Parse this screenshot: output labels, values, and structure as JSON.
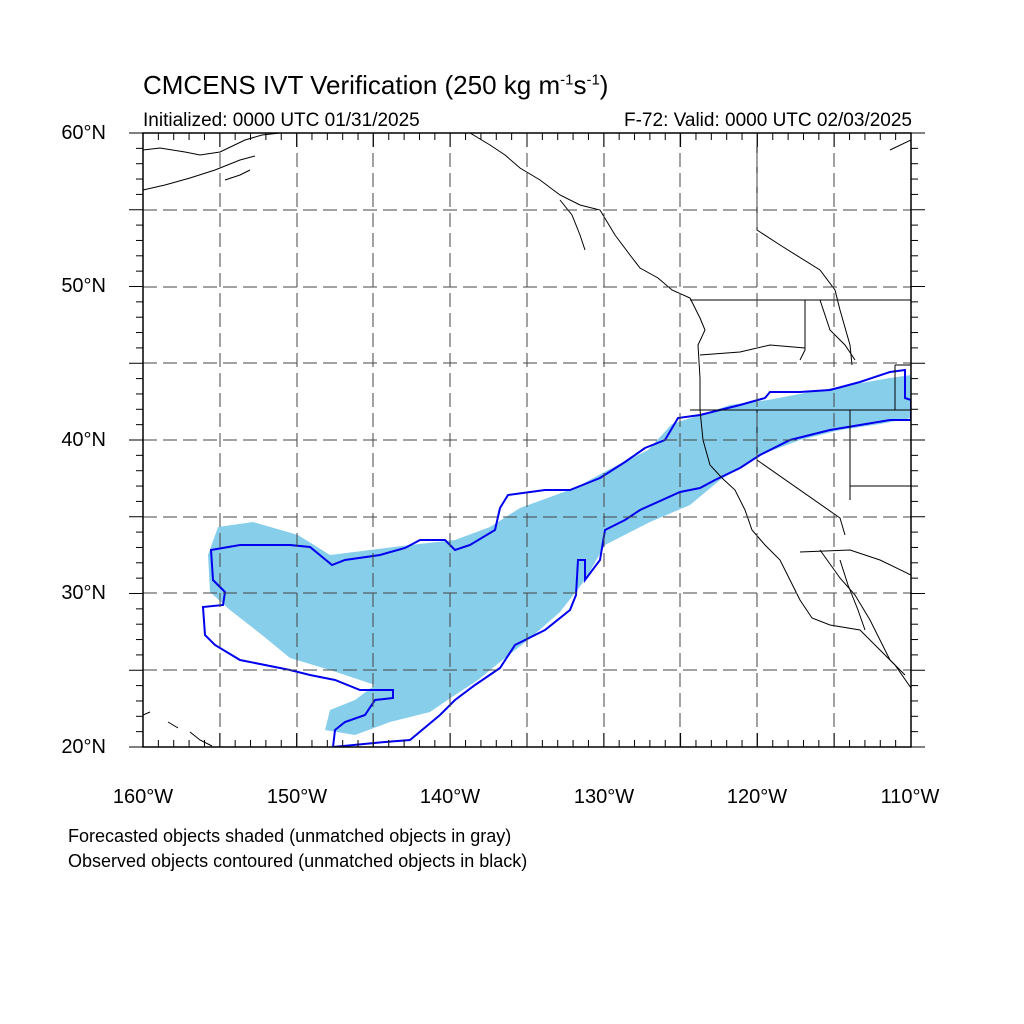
{
  "title": {
    "main": "CMCENS IVT Verification (250 kg m",
    "exp1": "-1",
    "mid": "s",
    "exp2": "-1",
    "end": ")"
  },
  "subtitle_left": "Initialized: 0000 UTC 01/31/2025",
  "subtitle_right": "F-72: Valid: 0000 UTC 02/03/2025",
  "lat_labels": [
    "60°N",
    "50°N",
    "40°N",
    "30°N",
    "20°N"
  ],
  "lon_labels": [
    "160°W",
    "150°W",
    "140°W",
    "130°W",
    "120°W",
    "110°W"
  ],
  "notes": [
    "Forecasted objects shaded (unmatched objects in gray)",
    "Observed objects contoured (unmatched objects in black)"
  ],
  "map": {
    "extent": {
      "lon": [
        -160,
        -110
      ],
      "lat": [
        20,
        60
      ]
    },
    "grid_dashed": true,
    "colors": {
      "forecast_fill": "#87ceeb",
      "observed_contour": "#0000ee",
      "coastline": "#000000"
    }
  }
}
